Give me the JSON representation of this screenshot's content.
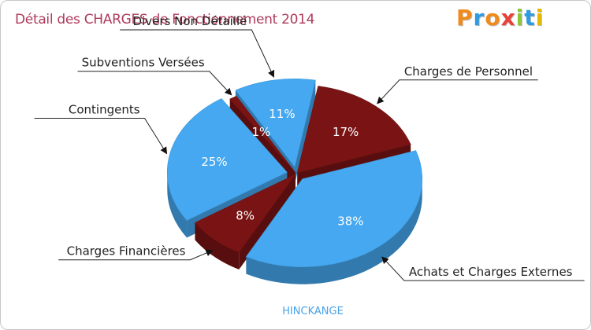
{
  "chart_data": {
    "type": "pie",
    "title": "Détail des CHARGES de Fonctionnement 2014",
    "category_label": "HINCKANGE",
    "slices": [
      {
        "name": "Charges de Personnel",
        "value": 17,
        "label": "17%",
        "color": "#7a1414"
      },
      {
        "name": "Achats et Charges Externes",
        "value": 38,
        "label": "38%",
        "color": "#45a8f0"
      },
      {
        "name": "Charges Financières",
        "value": 8,
        "label": "8%",
        "color": "#7a1414"
      },
      {
        "name": "Contingents",
        "value": 25,
        "label": "25%",
        "color": "#45a8f0"
      },
      {
        "name": "Subventions Versées",
        "value": 1,
        "label": "1%",
        "color": "#7a1414"
      },
      {
        "name": "Divers Non Détaillé",
        "value": 11,
        "label": "11%",
        "color": "#45a8f0"
      }
    ]
  },
  "logo": {
    "letters": [
      "P",
      "r",
      "o",
      "x",
      "i",
      "t",
      "i"
    ],
    "colors": [
      "#f08a1c",
      "#2e9be0",
      "#f08a1c",
      "#e8433a",
      "#8cc63f",
      "#2e9be0",
      "#e6b800"
    ]
  }
}
